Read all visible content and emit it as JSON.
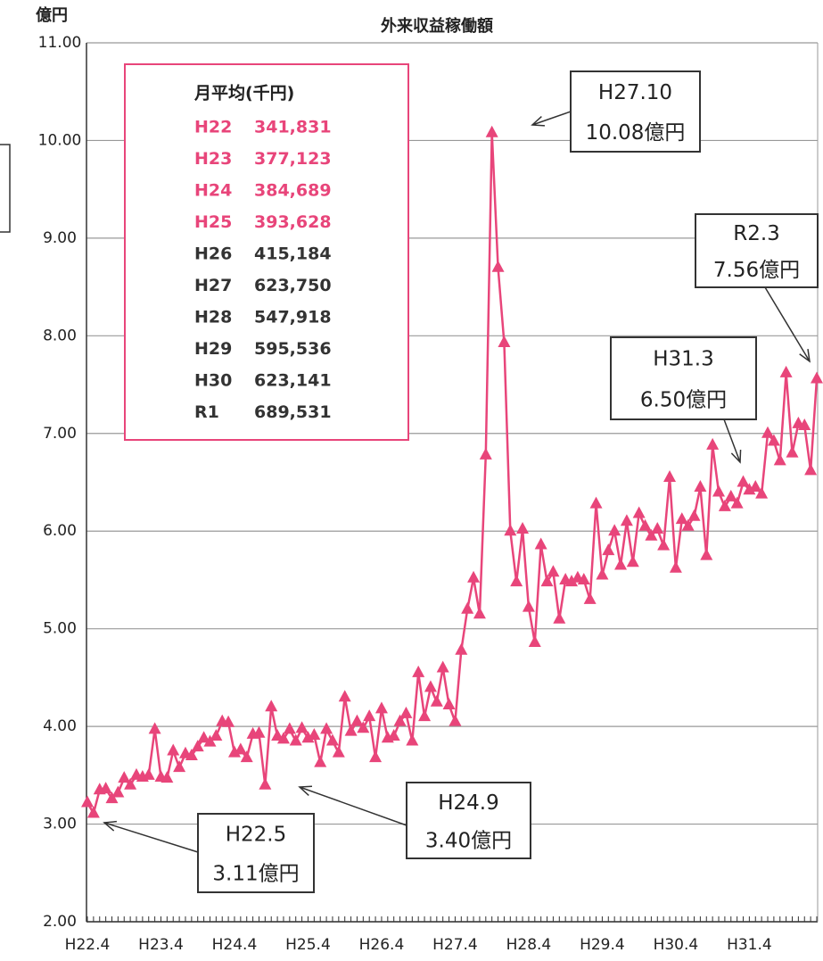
{
  "chart_data": {
    "type": "line",
    "title": "外来収益稼働額",
    "y_label": "億円",
    "categories": [
      "H22.4",
      null,
      null,
      null,
      null,
      null,
      null,
      null,
      null,
      null,
      null,
      null,
      "H23.4",
      null,
      null,
      null,
      null,
      null,
      null,
      null,
      null,
      null,
      null,
      null,
      "H24.4",
      null,
      null,
      null,
      null,
      null,
      null,
      null,
      null,
      null,
      null,
      null,
      "H25.4",
      null,
      null,
      null,
      null,
      null,
      null,
      null,
      null,
      null,
      null,
      null,
      "H26.4",
      null,
      null,
      null,
      null,
      null,
      null,
      null,
      null,
      null,
      null,
      null,
      "H27.4",
      null,
      null,
      null,
      null,
      null,
      null,
      null,
      null,
      null,
      null,
      null,
      "H28.4",
      null,
      null,
      null,
      null,
      null,
      null,
      null,
      null,
      null,
      null,
      null,
      "H29.4",
      null,
      null,
      null,
      null,
      null,
      null,
      null,
      null,
      null,
      null,
      null,
      "H30.4",
      null,
      null,
      null,
      null,
      null,
      null,
      null,
      null,
      null,
      null,
      null,
      "H31.4",
      null,
      null,
      null,
      null,
      null,
      null,
      null,
      null,
      null,
      null,
      null
    ],
    "series": [
      {
        "color": "#e8457a",
        "values": [
          3.22,
          3.11,
          3.35,
          3.36,
          3.26,
          3.32,
          3.47,
          3.4,
          3.5,
          3.48,
          3.5,
          3.97,
          3.48,
          3.47,
          3.75,
          3.58,
          3.72,
          3.7,
          3.79,
          3.88,
          3.84,
          3.9,
          4.05,
          4.04,
          3.73,
          3.76,
          3.68,
          3.92,
          3.93,
          3.4,
          4.2,
          3.9,
          3.87,
          3.97,
          3.85,
          3.98,
          3.88,
          3.91,
          3.63,
          3.97,
          3.85,
          3.73,
          4.3,
          3.95,
          4.05,
          3.98,
          4.1,
          3.68,
          4.18,
          3.88,
          3.9,
          4.05,
          4.13,
          3.85,
          4.55,
          4.1,
          4.4,
          4.25,
          4.6,
          4.22,
          4.05,
          4.78,
          5.2,
          5.52,
          5.15,
          6.78,
          10.08,
          8.7,
          7.93,
          6.0,
          5.48,
          6.02,
          5.22,
          4.86,
          5.86,
          5.48,
          5.58,
          5.1,
          5.5,
          5.48,
          5.52,
          5.5,
          5.3,
          6.28,
          5.55,
          5.8,
          6.0,
          5.65,
          6.1,
          5.68,
          6.18,
          6.05,
          5.95,
          6.02,
          5.85,
          6.55,
          5.62,
          6.12,
          6.05,
          6.15,
          6.45,
          5.75,
          6.88,
          6.4,
          6.25,
          6.35,
          6.28,
          6.5,
          6.42,
          6.45,
          6.38,
          7.0,
          6.92,
          6.72,
          7.62,
          6.8,
          7.1,
          7.08,
          6.62,
          7.56
        ]
      }
    ],
    "ylim": [
      2,
      11
    ],
    "yticks": [
      {
        "value": 2,
        "label": "2.00"
      },
      {
        "value": 3,
        "label": "3.00"
      },
      {
        "value": 4,
        "label": "4.00"
      },
      {
        "value": 5,
        "label": "5.00"
      },
      {
        "value": 6,
        "label": "6.00"
      },
      {
        "value": 7,
        "label": "7.00"
      },
      {
        "value": 8,
        "label": "8.00"
      },
      {
        "value": 9,
        "label": "9.00"
      },
      {
        "value": 10,
        "label": "10.00"
      },
      {
        "value": 11,
        "label": "11.00"
      }
    ],
    "grid": true,
    "legend_box": {
      "title": "月平均(千円)",
      "rows": [
        {
          "label": "H22",
          "value": "341,831",
          "color": "#e8457a"
        },
        {
          "label": "H23",
          "value": "377,123",
          "color": "#e8457a"
        },
        {
          "label": "H24",
          "value": "384,689",
          "color": "#e8457a"
        },
        {
          "label": "H25",
          "value": "393,628",
          "color": "#e8457a"
        },
        {
          "label": "H26",
          "value": "415,184",
          "color": "#333333"
        },
        {
          "label": "H27",
          "value": "623,750",
          "color": "#333333"
        },
        {
          "label": "H28",
          "value": "547,918",
          "color": "#333333"
        },
        {
          "label": "H29",
          "value": "595,536",
          "color": "#333333"
        },
        {
          "label": "H30",
          "value": "623,141",
          "color": "#333333"
        },
        {
          "label": "R1",
          "value": "689,531",
          "color": "#333333"
        }
      ]
    },
    "annotations": [
      {
        "lines": [
          "H27.10",
          "10.08億円"
        ]
      },
      {
        "lines": [
          "R2.3",
          "7.56億円"
        ]
      },
      {
        "lines": [
          "H31.3",
          "6.50億円"
        ]
      },
      {
        "lines": [
          "H24.9",
          "3.40億円"
        ]
      },
      {
        "lines": [
          "H22.5",
          "3.11億円"
        ]
      }
    ]
  }
}
